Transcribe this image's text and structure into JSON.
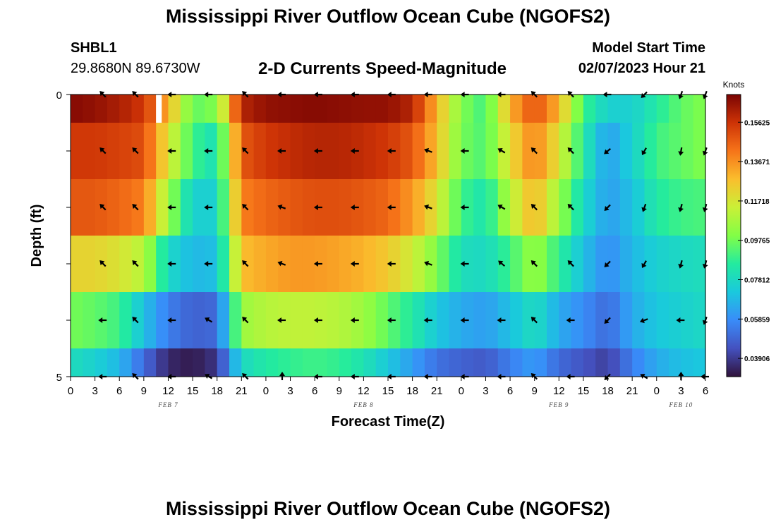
{
  "header": {
    "title": "Mississippi River Outflow Ocean Cube (NGOFS2)",
    "station_id": "SHBL1",
    "station_coords": "29.8680N  89.6730W",
    "plot_title": "2-D Currents Speed-Magnitude",
    "start_label": "Model Start Time",
    "start_value": "02/07/2023 Hour 21"
  },
  "footer": {
    "title": "Mississippi River Outflow Ocean Cube (NGOFS2)"
  },
  "chart_data": {
    "type": "heatmap",
    "title": "2-D Currents Speed-Magnitude",
    "xlabel": "Forecast Time(Z)",
    "ylabel": "Depth (ft)",
    "ylim": [
      0,
      5
    ],
    "y_ticks": [
      "0",
      "5"
    ],
    "x_tick_labels": [
      "0",
      "3",
      "6",
      "9",
      "12",
      "15",
      "18",
      "21",
      "0",
      "3",
      "6",
      "9",
      "12",
      "15",
      "18",
      "21",
      "0",
      "3",
      "6",
      "9",
      "12",
      "15",
      "18",
      "21",
      "0",
      "3",
      "6"
    ],
    "date_labels": [
      {
        "label": "FEB 7",
        "at_hour": 12
      },
      {
        "label": "FEB 8",
        "at_hour": 36
      },
      {
        "label": "FEB 9",
        "at_hour": 60
      },
      {
        "label": "FEB 10",
        "at_hour": 75
      }
    ],
    "x_hours_range": [
      0,
      78
    ],
    "depth_layers": [
      0,
      1,
      2,
      3,
      4,
      5
    ],
    "colorbar": {
      "unit": "Knots",
      "min": 0.03,
      "max": 0.17,
      "ticks": [
        "0.15625",
        "0.13671",
        "0.11718",
        "0.09765",
        "0.07812",
        "0.05859",
        "0.03906"
      ],
      "tick_values": [
        0.15625,
        0.13671,
        0.11718,
        0.09765,
        0.07812,
        0.05859,
        0.03906
      ]
    },
    "speed_knots": [
      {
        "depth_ft": 0,
        "hours": [
          0,
          3,
          6,
          9,
          12,
          15,
          18,
          21,
          24,
          27,
          30,
          33,
          36,
          39,
          42,
          45,
          48,
          51,
          54,
          57,
          60,
          63,
          66,
          69,
          72,
          75,
          78
        ],
        "values": [
          0.168,
          0.166,
          0.162,
          0.155,
          0.13,
          0.095,
          0.1,
          0.16,
          0.166,
          0.167,
          0.168,
          0.167,
          0.166,
          0.166,
          0.16,
          0.13,
          0.1,
          0.09,
          0.13,
          0.15,
          0.13,
          0.09,
          0.075,
          0.075,
          0.085,
          0.095,
          0.1
        ]
      },
      {
        "depth_ft": 1,
        "hours": [
          0,
          3,
          6,
          9,
          12,
          15,
          18,
          21,
          24,
          27,
          30,
          33,
          36,
          39,
          42,
          45,
          48,
          51,
          54,
          57,
          60,
          63,
          66,
          69,
          72,
          75,
          78
        ],
        "values": [
          0.155,
          0.155,
          0.153,
          0.15,
          0.118,
          0.09,
          0.08,
          0.148,
          0.155,
          0.158,
          0.16,
          0.16,
          0.158,
          0.155,
          0.148,
          0.128,
          0.098,
          0.092,
          0.12,
          0.14,
          0.118,
          0.085,
          0.062,
          0.075,
          0.09,
          0.095,
          0.1
        ]
      },
      {
        "depth_ft": 2,
        "hours": [
          0,
          3,
          6,
          9,
          12,
          15,
          18,
          21,
          24,
          27,
          30,
          33,
          36,
          39,
          42,
          45,
          48,
          51,
          54,
          57,
          60,
          63,
          66,
          69,
          72,
          75,
          78
        ],
        "values": [
          0.148,
          0.148,
          0.145,
          0.14,
          0.105,
          0.075,
          0.075,
          0.14,
          0.145,
          0.148,
          0.15,
          0.15,
          0.148,
          0.145,
          0.135,
          0.118,
          0.09,
          0.082,
          0.11,
          0.13,
          0.105,
          0.078,
          0.062,
          0.07,
          0.085,
          0.09,
          0.092
        ]
      },
      {
        "depth_ft": 3,
        "hours": [
          0,
          3,
          6,
          9,
          12,
          15,
          18,
          21,
          24,
          27,
          30,
          33,
          36,
          39,
          42,
          45,
          48,
          51,
          54,
          57,
          60,
          63,
          66,
          69,
          72,
          75,
          78
        ],
        "values": [
          0.122,
          0.122,
          0.118,
          0.11,
          0.078,
          0.068,
          0.07,
          0.128,
          0.132,
          0.135,
          0.135,
          0.133,
          0.13,
          0.125,
          0.115,
          0.1,
          0.08,
          0.078,
          0.09,
          0.105,
          0.088,
          0.07,
          0.058,
          0.068,
          0.075,
          0.078,
          0.08
        ]
      },
      {
        "depth_ft": 4,
        "hours": [
          0,
          3,
          6,
          9,
          12,
          15,
          18,
          21,
          24,
          27,
          30,
          33,
          36,
          39,
          42,
          45,
          48,
          51,
          54,
          57,
          60,
          63,
          66,
          69,
          72,
          75,
          78
        ],
        "values": [
          0.098,
          0.095,
          0.09,
          0.07,
          0.055,
          0.048,
          0.05,
          0.105,
          0.11,
          0.112,
          0.112,
          0.11,
          0.105,
          0.095,
          0.085,
          0.072,
          0.065,
          0.062,
          0.07,
          0.08,
          0.065,
          0.058,
          0.05,
          0.065,
          0.072,
          0.075,
          0.078
        ]
      },
      {
        "depth_ft": 5,
        "hours": [
          0,
          3,
          6,
          9,
          12,
          15,
          18,
          21,
          24,
          27,
          30,
          33,
          36,
          39,
          42,
          45,
          48,
          51,
          54,
          57,
          60,
          63,
          66,
          69,
          72,
          75,
          78
        ],
        "values": [
          0.08,
          0.075,
          0.068,
          0.05,
          0.035,
          0.032,
          0.038,
          0.078,
          0.085,
          0.088,
          0.09,
          0.088,
          0.082,
          0.072,
          0.062,
          0.052,
          0.048,
          0.046,
          0.055,
          0.062,
          0.05,
          0.045,
          0.04,
          0.055,
          0.065,
          0.07,
          0.072
        ]
      }
    ],
    "missing_cells": [
      {
        "depth_ft": 0,
        "hour_from": 10.5,
        "hour_to": 11.2
      }
    ],
    "vector_hours": [
      4,
      8,
      12.5,
      17,
      21.5,
      26,
      30.5,
      35,
      39.5,
      44,
      48.5,
      53,
      57,
      61.5,
      66,
      70.5,
      75,
      78
    ],
    "vector_angles_deg": [
      {
        "depth_ft": 0,
        "angles": [
          135,
          135,
          180,
          180,
          135,
          180,
          180,
          180,
          180,
          180,
          180,
          180,
          135,
          135,
          180,
          225,
          250,
          250
        ]
      },
      {
        "depth_ft": 1,
        "angles": [
          135,
          135,
          180,
          180,
          135,
          180,
          180,
          180,
          180,
          160,
          180,
          150,
          135,
          135,
          220,
          240,
          260,
          250
        ]
      },
      {
        "depth_ft": 2,
        "angles": [
          135,
          135,
          180,
          180,
          135,
          160,
          180,
          180,
          180,
          160,
          180,
          150,
          135,
          135,
          225,
          250,
          255,
          255
        ]
      },
      {
        "depth_ft": 3,
        "angles": [
          135,
          135,
          180,
          180,
          135,
          160,
          180,
          180,
          180,
          160,
          180,
          140,
          135,
          135,
          225,
          240,
          255,
          255
        ]
      },
      {
        "depth_ft": 4,
        "angles": [
          180,
          135,
          180,
          150,
          135,
          180,
          180,
          180,
          180,
          180,
          180,
          180,
          135,
          180,
          225,
          200,
          180,
          250
        ]
      },
      {
        "depth_ft": 5,
        "angles": [
          180,
          135,
          180,
          150,
          135,
          90,
          180,
          180,
          180,
          180,
          180,
          180,
          135,
          180,
          225,
          150,
          90,
          180
        ]
      }
    ]
  }
}
